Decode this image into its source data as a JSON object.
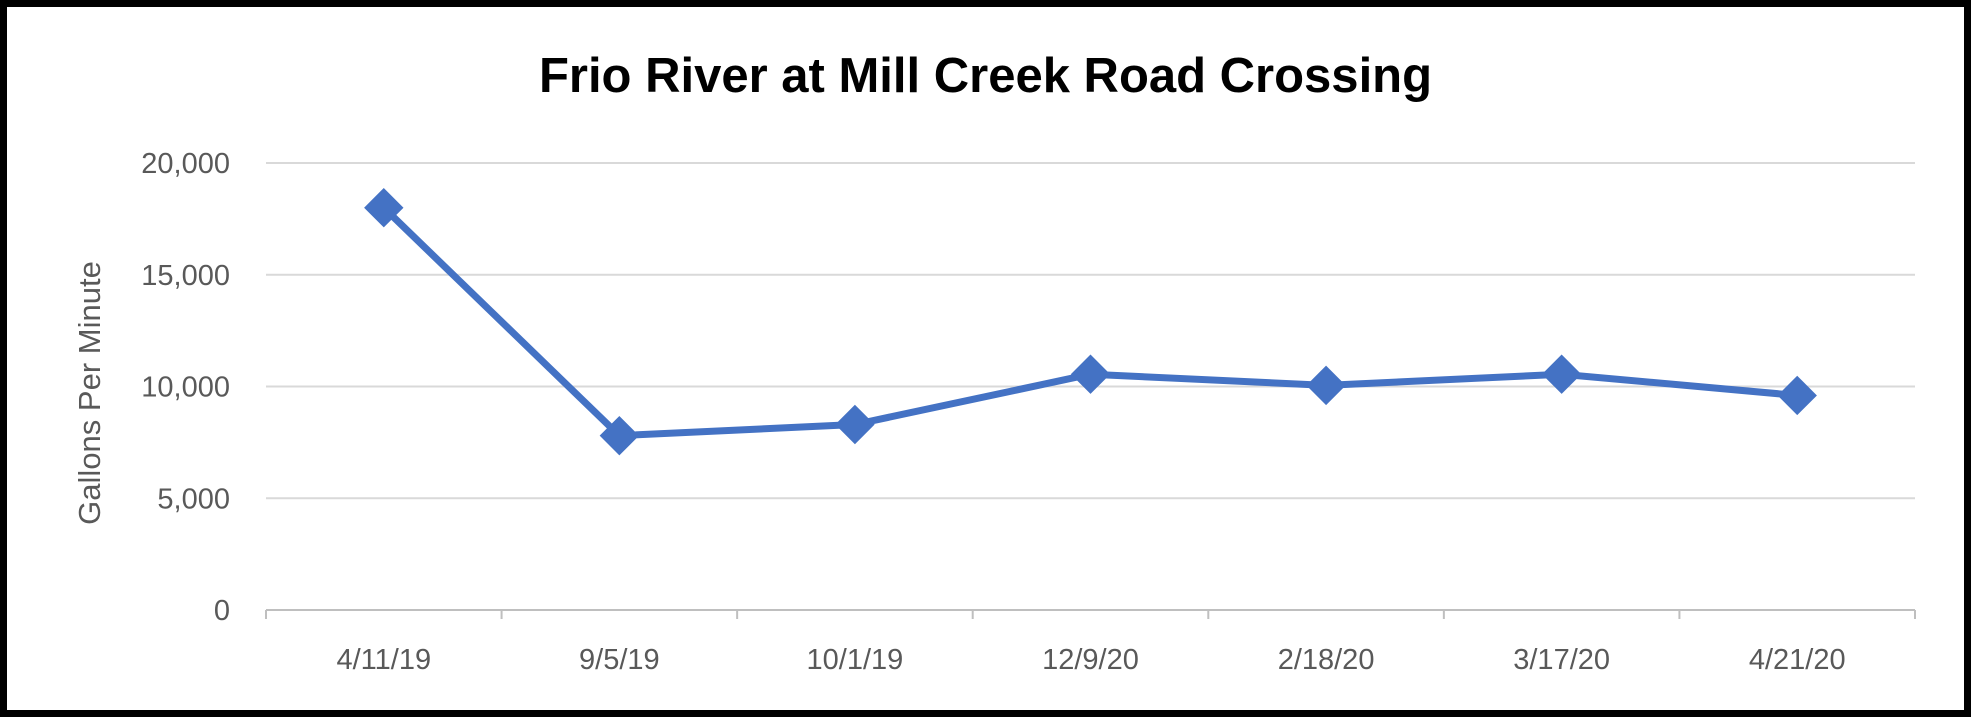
{
  "chart_data": {
    "type": "line",
    "title": "Frio River at Mill Creek Road Crossing",
    "xlabel": "",
    "ylabel": "Gallons Per Minute",
    "categories": [
      "4/11/19",
      "9/5/19",
      "10/1/19",
      "12/9/20",
      "2/18/20",
      "3/17/20",
      "4/21/20"
    ],
    "series": [
      {
        "values": [
          18000,
          7800,
          8300,
          10550,
          10050,
          10550,
          9600
        ]
      }
    ],
    "ylim": [
      0,
      20000
    ],
    "yticks": [
      0,
      5000,
      10000,
      15000,
      20000
    ],
    "ytick_labels": [
      "0",
      "5,000",
      "10,000",
      "15,000",
      "20,000"
    ],
    "grid": true,
    "marker": "diamond",
    "colors": {
      "line": "#4472C4",
      "grid": "#D9D9D9",
      "axis": "#BFBFBF",
      "text": "#595959"
    }
  }
}
